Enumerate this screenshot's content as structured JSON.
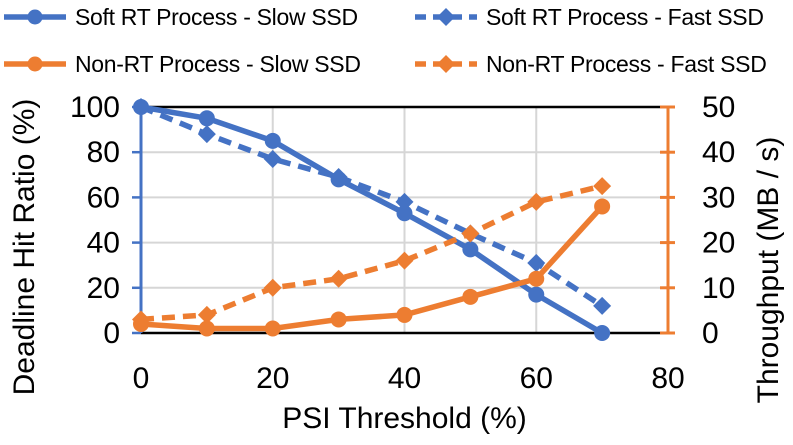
{
  "chart_data": {
    "type": "line",
    "title": "",
    "xlabel": "PSI Threshold (%)",
    "ylabel_left": "Deadline Hit Ratio (%)",
    "ylabel_right": "Throughput (MB / s)",
    "x": [
      0,
      10,
      20,
      30,
      40,
      50,
      60,
      70
    ],
    "xlim": [
      0,
      80
    ],
    "x_ticks": [
      0,
      20,
      40,
      60,
      80
    ],
    "ylim_left": [
      0,
      100
    ],
    "y_ticks_left": [
      0,
      20,
      40,
      60,
      80,
      100
    ],
    "ylim_right": [
      0,
      50
    ],
    "y_ticks_right": [
      0,
      10,
      20,
      30,
      40,
      50
    ],
    "grid": true,
    "legend_position": "top",
    "series": [
      {
        "name": "Soft RT Process - Slow SSD",
        "slug": "soft-rt-slow-ssd",
        "axis": "left",
        "style": "solid",
        "marker": "circle",
        "color": "#4472C4",
        "values": [
          100,
          95,
          85,
          68,
          53,
          37,
          17,
          0
        ]
      },
      {
        "name": "Soft RT Process - Fast SSD",
        "slug": "soft-rt-fast-ssd",
        "axis": "left",
        "style": "dashed",
        "marker": "diamond",
        "color": "#4472C4",
        "values": [
          100,
          88,
          77,
          69,
          58,
          44,
          31,
          12
        ]
      },
      {
        "name": "Non-RT Process - Slow SSD",
        "slug": "non-rt-slow-ssd",
        "axis": "right",
        "style": "solid",
        "marker": "circle",
        "color": "#ED7D31",
        "values": [
          2,
          1,
          1,
          3,
          4,
          8,
          12,
          28
        ]
      },
      {
        "name": "Non-RT Process - Fast SSD",
        "slug": "non-rt-fast-ssd",
        "axis": "right",
        "style": "dashed",
        "marker": "diamond",
        "color": "#ED7D31",
        "values": [
          3,
          4,
          10,
          12,
          16,
          22,
          29,
          32.5
        ]
      }
    ],
    "colors": {
      "blue": "#4472C4",
      "orange": "#ED7D31",
      "gridline": "#D6D6D6",
      "axis_black": "#000000",
      "text": "#000000",
      "background": "#FFFFFF"
    }
  }
}
